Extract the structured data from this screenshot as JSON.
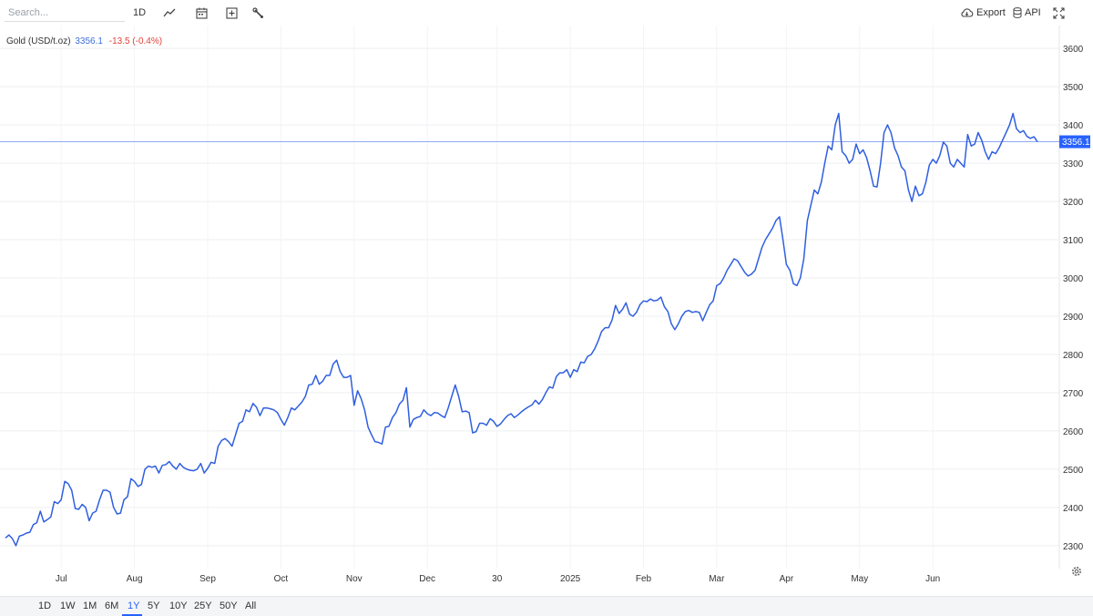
{
  "toolbar": {
    "search_placeholder": "Search...",
    "interval_label": "1D",
    "icons": [
      "line-chart-icon",
      "calendar-icon",
      "add-indicator-icon",
      "wrench-icon"
    ],
    "export_label": "Export",
    "api_label": "API",
    "fullscreen_icon": "expand-icon"
  },
  "legend": {
    "name": "Gold (USD/t.oz)",
    "price": "3356.1",
    "change": "-13.5 (-0.4%)"
  },
  "colors": {
    "line": "#2f5fe0",
    "price_label_bg": "#2962ff",
    "change_negative": "#e0433a",
    "grid": "#eceff2"
  },
  "ranges": {
    "items": [
      "1D",
      "1W",
      "1M",
      "6M",
      "1Y",
      "5Y",
      "10Y",
      "25Y",
      "50Y",
      "All"
    ],
    "active": "1Y"
  },
  "chart_data": {
    "type": "line",
    "y_axis_position": "right",
    "ylim": [
      2240,
      3660
    ],
    "y_ticks": [
      2300,
      2400,
      2500,
      2600,
      2700,
      2800,
      2900,
      3000,
      3100,
      3200,
      3300,
      3400,
      3500,
      3600
    ],
    "x_ticks": [
      {
        "label": "Jul",
        "index": 16
      },
      {
        "label": "Aug",
        "index": 37
      },
      {
        "label": "Sep",
        "index": 58
      },
      {
        "label": "Oct",
        "index": 79
      },
      {
        "label": "Nov",
        "index": 100
      },
      {
        "label": "Dec",
        "index": 121
      },
      {
        "label": "30",
        "index": 141
      },
      {
        "label": "2025",
        "index": 162
      },
      {
        "label": "Feb",
        "index": 183
      },
      {
        "label": "Mar",
        "index": 204
      },
      {
        "label": "Apr",
        "index": 224
      },
      {
        "label": "May",
        "index": 245
      },
      {
        "label": "Jun",
        "index": 266
      }
    ],
    "last_value": 3356.1,
    "last_value_label": "3356.1",
    "grid": true,
    "series": [
      {
        "values": [
          2320,
          2328,
          2318,
          2300,
          2325,
          2328,
          2333,
          2335,
          2355,
          2360,
          2390,
          2362,
          2368,
          2375,
          2415,
          2410,
          2420,
          2468,
          2462,
          2445,
          2397,
          2395,
          2408,
          2400,
          2365,
          2385,
          2390,
          2420,
          2445,
          2445,
          2440,
          2400,
          2383,
          2385,
          2420,
          2428,
          2475,
          2468,
          2455,
          2460,
          2500,
          2508,
          2505,
          2508,
          2490,
          2510,
          2512,
          2520,
          2508,
          2500,
          2515,
          2505,
          2500,
          2497,
          2496,
          2500,
          2515,
          2490,
          2502,
          2518,
          2515,
          2560,
          2575,
          2580,
          2572,
          2560,
          2590,
          2620,
          2625,
          2655,
          2650,
          2672,
          2662,
          2640,
          2660,
          2660,
          2658,
          2655,
          2648,
          2630,
          2615,
          2635,
          2660,
          2655,
          2665,
          2675,
          2690,
          2720,
          2722,
          2745,
          2722,
          2730,
          2745,
          2745,
          2775,
          2785,
          2755,
          2740,
          2740,
          2745,
          2667,
          2705,
          2685,
          2655,
          2610,
          2590,
          2572,
          2570,
          2566,
          2610,
          2612,
          2635,
          2648,
          2670,
          2680,
          2713,
          2610,
          2630,
          2635,
          2638,
          2655,
          2645,
          2640,
          2648,
          2647,
          2640,
          2635,
          2660,
          2690,
          2720,
          2690,
          2650,
          2652,
          2648,
          2595,
          2598,
          2620,
          2620,
          2615,
          2632,
          2625,
          2612,
          2618,
          2630,
          2640,
          2645,
          2635,
          2642,
          2650,
          2657,
          2663,
          2668,
          2680,
          2670,
          2682,
          2700,
          2715,
          2712,
          2742,
          2752,
          2752,
          2760,
          2740,
          2760,
          2755,
          2780,
          2778,
          2795,
          2800,
          2815,
          2835,
          2860,
          2870,
          2870,
          2890,
          2928,
          2907,
          2918,
          2935,
          2905,
          2900,
          2910,
          2930,
          2940,
          2938,
          2945,
          2940,
          2942,
          2950,
          2925,
          2912,
          2880,
          2865,
          2880,
          2900,
          2912,
          2915,
          2910,
          2912,
          2910,
          2888,
          2910,
          2930,
          2940,
          2980,
          2985,
          3000,
          3020,
          3035,
          3050,
          3045,
          3030,
          3015,
          3005,
          3010,
          3020,
          3050,
          3080,
          3100,
          3115,
          3130,
          3150,
          3160,
          3100,
          3035,
          3020,
          2985,
          2980,
          3000,
          3050,
          3150,
          3190,
          3230,
          3220,
          3250,
          3300,
          3345,
          3335,
          3400,
          3430,
          3330,
          3320,
          3300,
          3310,
          3350,
          3325,
          3335,
          3315,
          3280,
          3240,
          3238,
          3300,
          3380,
          3400,
          3380,
          3340,
          3320,
          3290,
          3280,
          3230,
          3200,
          3240,
          3215,
          3220,
          3250,
          3295,
          3310,
          3300,
          3320,
          3355,
          3345,
          3300,
          3290,
          3310,
          3300,
          3290,
          3375,
          3345,
          3350,
          3380,
          3360,
          3330,
          3310,
          3330,
          3325,
          3340,
          3360,
          3380,
          3400,
          3430,
          3390,
          3380,
          3385,
          3370,
          3365,
          3369,
          3356.1
        ]
      }
    ]
  }
}
